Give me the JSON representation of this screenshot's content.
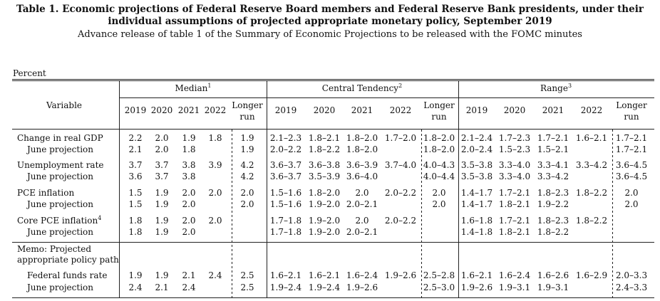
{
  "header": {
    "title_line1": "Table 1. Economic projections of Federal Reserve Board members and Federal Reserve Bank presidents, under their",
    "title_line2": "individual assumptions of projected appropriate monetary policy, September 2019",
    "subtitle": "Advance release of table 1 of the Summary of Economic Projections to be released with the FOMC minutes"
  },
  "unit_label": "Percent",
  "column_groups": [
    {
      "label": "Median",
      "note": "1"
    },
    {
      "label": "Central Tendency",
      "note": "2"
    },
    {
      "label": "Range",
      "note": "3"
    }
  ],
  "variable_header": "Variable",
  "year_headers": [
    "2019",
    "2020",
    "2021",
    "2022"
  ],
  "longer_run_header": [
    "Longer",
    "run"
  ],
  "memo_label": [
    "Memo: Projected",
    "appropriate policy path"
  ],
  "rows": [
    {
      "label": "Change in real GDP",
      "note": "",
      "indent": false,
      "median": [
        "2.2",
        "2.0",
        "1.9",
        "1.8",
        "1.9"
      ],
      "central": [
        "2.1–2.3",
        "1.8–2.1",
        "1.8–2.0",
        "1.7–2.0",
        "1.8–2.0"
      ],
      "range": [
        "2.1–2.4",
        "1.7–2.3",
        "1.7–2.1",
        "1.6–2.1",
        "1.7–2.1"
      ]
    },
    {
      "label": "June projection",
      "note": "",
      "indent": true,
      "median": [
        "2.1",
        "2.0",
        "1.8",
        "",
        "1.9"
      ],
      "central": [
        "2.0–2.2",
        "1.8–2.2",
        "1.8–2.0",
        "",
        "1.8–2.0"
      ],
      "range": [
        "2.0–2.4",
        "1.5–2.3",
        "1.5–2.1",
        "",
        "1.7–2.1"
      ]
    },
    {
      "label": "Unemployment rate",
      "note": "",
      "indent": false,
      "median": [
        "3.7",
        "3.7",
        "3.8",
        "3.9",
        "4.2"
      ],
      "central": [
        "3.6–3.7",
        "3.6–3.8",
        "3.6–3.9",
        "3.7–4.0",
        "4.0–4.3"
      ],
      "range": [
        "3.5–3.8",
        "3.3–4.0",
        "3.3–4.1",
        "3.3–4.2",
        "3.6–4.5"
      ]
    },
    {
      "label": "June projection",
      "note": "",
      "indent": true,
      "median": [
        "3.6",
        "3.7",
        "3.8",
        "",
        "4.2"
      ],
      "central": [
        "3.6–3.7",
        "3.5–3.9",
        "3.6–4.0",
        "",
        "4.0–4.4"
      ],
      "range": [
        "3.5–3.8",
        "3.3–4.0",
        "3.3–4.2",
        "",
        "3.6–4.5"
      ]
    },
    {
      "label": "PCE inflation",
      "note": "",
      "indent": false,
      "median": [
        "1.5",
        "1.9",
        "2.0",
        "2.0",
        "2.0"
      ],
      "central": [
        "1.5–1.6",
        "1.8–2.0",
        "2.0",
        "2.0–2.2",
        "2.0"
      ],
      "range": [
        "1.4–1.7",
        "1.7–2.1",
        "1.8–2.3",
        "1.8–2.2",
        "2.0"
      ]
    },
    {
      "label": "June projection",
      "note": "",
      "indent": true,
      "median": [
        "1.5",
        "1.9",
        "2.0",
        "",
        "2.0"
      ],
      "central": [
        "1.5–1.6",
        "1.9–2.0",
        "2.0–2.1",
        "",
        "2.0"
      ],
      "range": [
        "1.4–1.7",
        "1.8–2.1",
        "1.9–2.2",
        "",
        "2.0"
      ]
    },
    {
      "label": "Core PCE inflation",
      "note": "4",
      "indent": false,
      "median": [
        "1.8",
        "1.9",
        "2.0",
        "2.0",
        ""
      ],
      "central": [
        "1.7–1.8",
        "1.9–2.0",
        "2.0",
        "2.0–2.2",
        ""
      ],
      "range": [
        "1.6–1.8",
        "1.7–2.1",
        "1.8–2.3",
        "1.8–2.2",
        ""
      ]
    },
    {
      "label": "June projection",
      "note": "",
      "indent": true,
      "median": [
        "1.8",
        "1.9",
        "2.0",
        "",
        ""
      ],
      "central": [
        "1.7–1.8",
        "1.9–2.0",
        "2.0–2.1",
        "",
        ""
      ],
      "range": [
        "1.4–1.8",
        "1.8–2.1",
        "1.8–2.2",
        "",
        ""
      ]
    },
    {
      "label": "Federal funds rate",
      "note": "",
      "indent": true,
      "median": [
        "1.9",
        "1.9",
        "2.1",
        "2.4",
        "2.5"
      ],
      "central": [
        "1.6–2.1",
        "1.6–2.1",
        "1.6–2.4",
        "1.9–2.6",
        "2.5–2.8"
      ],
      "range": [
        "1.6–2.1",
        "1.6–2.4",
        "1.6–2.6",
        "1.6–2.9",
        "2.0–3.3"
      ]
    },
    {
      "label": "June projection",
      "note": "",
      "indent": true,
      "median": [
        "2.4",
        "2.1",
        "2.4",
        "",
        "2.5"
      ],
      "central": [
        "1.9–2.4",
        "1.9–2.4",
        "1.9–2.6",
        "",
        "2.5–3.0"
      ],
      "range": [
        "1.9–2.6",
        "1.9–3.1",
        "1.9–3.1",
        "",
        "2.4–3.3"
      ]
    }
  ]
}
